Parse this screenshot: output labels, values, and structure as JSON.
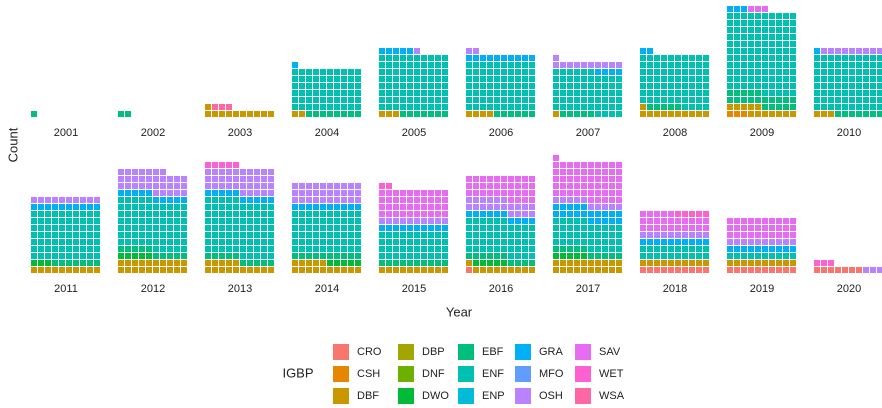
{
  "chart_data": {
    "type": "waffle",
    "x_label": "Year",
    "y_label": "Count",
    "legend_title": "IGBP",
    "categories": [
      "2001",
      "2002",
      "2003",
      "2004",
      "2005",
      "2006",
      "2007",
      "2008",
      "2009",
      "2010",
      "2011",
      "2012",
      "2013",
      "2014",
      "2015",
      "2016",
      "2017",
      "2018",
      "2019",
      "2020"
    ],
    "series": [
      {
        "name": "CRO",
        "color": "#F8766D",
        "values": [
          0,
          0,
          0,
          0,
          0,
          0,
          0,
          0,
          0,
          0,
          0,
          0,
          0,
          0,
          0,
          1,
          0,
          10,
          10,
          7
        ]
      },
      {
        "name": "CSH",
        "color": "#E58700",
        "values": [
          0,
          0,
          0,
          0,
          0,
          0,
          0,
          0,
          3,
          0,
          0,
          0,
          0,
          0,
          0,
          0,
          0,
          0,
          0,
          0
        ]
      },
      {
        "name": "DBF",
        "color": "#C99800",
        "values": [
          0,
          0,
          11,
          2,
          3,
          4,
          1,
          11,
          12,
          3,
          10,
          20,
          15,
          15,
          10,
          10,
          20,
          10,
          10,
          0
        ]
      },
      {
        "name": "DBP",
        "color": "#A3A500",
        "values": [
          0,
          0,
          0,
          0,
          0,
          0,
          0,
          0,
          0,
          0,
          0,
          0,
          0,
          0,
          0,
          0,
          0,
          0,
          0,
          0
        ]
      },
      {
        "name": "DNF",
        "color": "#6BB100",
        "values": [
          0,
          0,
          0,
          0,
          0,
          0,
          0,
          0,
          0,
          0,
          0,
          0,
          0,
          0,
          0,
          0,
          0,
          0,
          0,
          0
        ]
      },
      {
        "name": "DWO",
        "color": "#00BA38",
        "values": [
          0,
          0,
          0,
          0,
          0,
          0,
          0,
          0,
          0,
          0,
          3,
          5,
          0,
          5,
          0,
          5,
          5,
          0,
          0,
          0
        ]
      },
      {
        "name": "EBF",
        "color": "#00BF7D",
        "values": [
          1,
          2,
          0,
          8,
          7,
          6,
          5,
          5,
          20,
          7,
          7,
          10,
          10,
          10,
          10,
          10,
          10,
          0,
          0,
          0
        ]
      },
      {
        "name": "ENF",
        "color": "#00C0AF",
        "values": [
          0,
          0,
          0,
          60,
          80,
          70,
          60,
          74,
          115,
          80,
          70,
          70,
          80,
          60,
          40,
          50,
          40,
          20,
          10,
          0
        ]
      },
      {
        "name": "ENP",
        "color": "#00BCD8",
        "values": [
          0,
          0,
          0,
          0,
          0,
          0,
          0,
          0,
          0,
          0,
          0,
          0,
          0,
          0,
          0,
          0,
          0,
          0,
          0,
          0
        ]
      },
      {
        "name": "GRA",
        "color": "#00B0F6",
        "values": [
          0,
          0,
          0,
          1,
          5,
          10,
          4,
          2,
          3,
          1,
          10,
          10,
          10,
          10,
          10,
          10,
          20,
          10,
          10,
          0
        ]
      },
      {
        "name": "MFO",
        "color": "#619CFF",
        "values": [
          0,
          0,
          0,
          0,
          0,
          0,
          0,
          0,
          0,
          0,
          0,
          0,
          0,
          0,
          0,
          0,
          0,
          0,
          0,
          0
        ]
      },
      {
        "name": "OSH",
        "color": "#B983FF",
        "values": [
          0,
          0,
          0,
          0,
          1,
          2,
          11,
          0,
          0,
          9,
          10,
          32,
          35,
          30,
          10,
          20,
          10,
          10,
          10,
          3
        ]
      },
      {
        "name": "SAV",
        "color": "#E76BF3",
        "values": [
          0,
          0,
          0,
          0,
          0,
          0,
          0,
          0,
          3,
          0,
          0,
          0,
          0,
          0,
          40,
          34,
          56,
          25,
          30,
          0
        ]
      },
      {
        "name": "WET",
        "color": "#FD61D1",
        "values": [
          0,
          0,
          0,
          0,
          0,
          0,
          0,
          0,
          0,
          0,
          0,
          0,
          5,
          0,
          2,
          0,
          0,
          5,
          0,
          3
        ]
      },
      {
        "name": "WSA",
        "color": "#FF67A4",
        "values": [
          0,
          0,
          3,
          0,
          0,
          0,
          0,
          0,
          0,
          0,
          0,
          0,
          0,
          0,
          0,
          0,
          0,
          0,
          0,
          0
        ]
      }
    ]
  }
}
